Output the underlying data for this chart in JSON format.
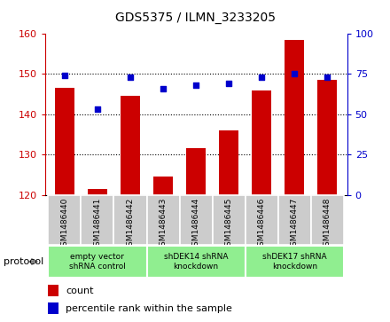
{
  "title": "GDS5375 / ILMN_3233205",
  "samples": [
    "GSM1486440",
    "GSM1486441",
    "GSM1486442",
    "GSM1486443",
    "GSM1486444",
    "GSM1486445",
    "GSM1486446",
    "GSM1486447",
    "GSM1486448"
  ],
  "counts": [
    146.5,
    121.5,
    144.5,
    124.5,
    131.5,
    136.0,
    146.0,
    158.5,
    148.5
  ],
  "percentiles": [
    74,
    53,
    73,
    66,
    68,
    69,
    73,
    75,
    73
  ],
  "ylim_left": [
    120,
    160
  ],
  "ylim_right": [
    0,
    100
  ],
  "yticks_left": [
    120,
    130,
    140,
    150,
    160
  ],
  "yticks_right": [
    0,
    25,
    50,
    75,
    100
  ],
  "bar_color": "#CC0000",
  "scatter_color": "#0000CC",
  "tick_bg_color": "#CCCCCC",
  "protocol_color": "#90EE90",
  "protocol_label": "protocol",
  "legend_count": "count",
  "legend_percentile": "percentile rank within the sample",
  "groups": [
    {
      "label": "empty vector\nshRNA control",
      "start": 0,
      "end": 3
    },
    {
      "label": "shDEK14 shRNA\nknockdown",
      "start": 3,
      "end": 6
    },
    {
      "label": "shDEK17 shRNA\nknockdown",
      "start": 6,
      "end": 9
    }
  ]
}
